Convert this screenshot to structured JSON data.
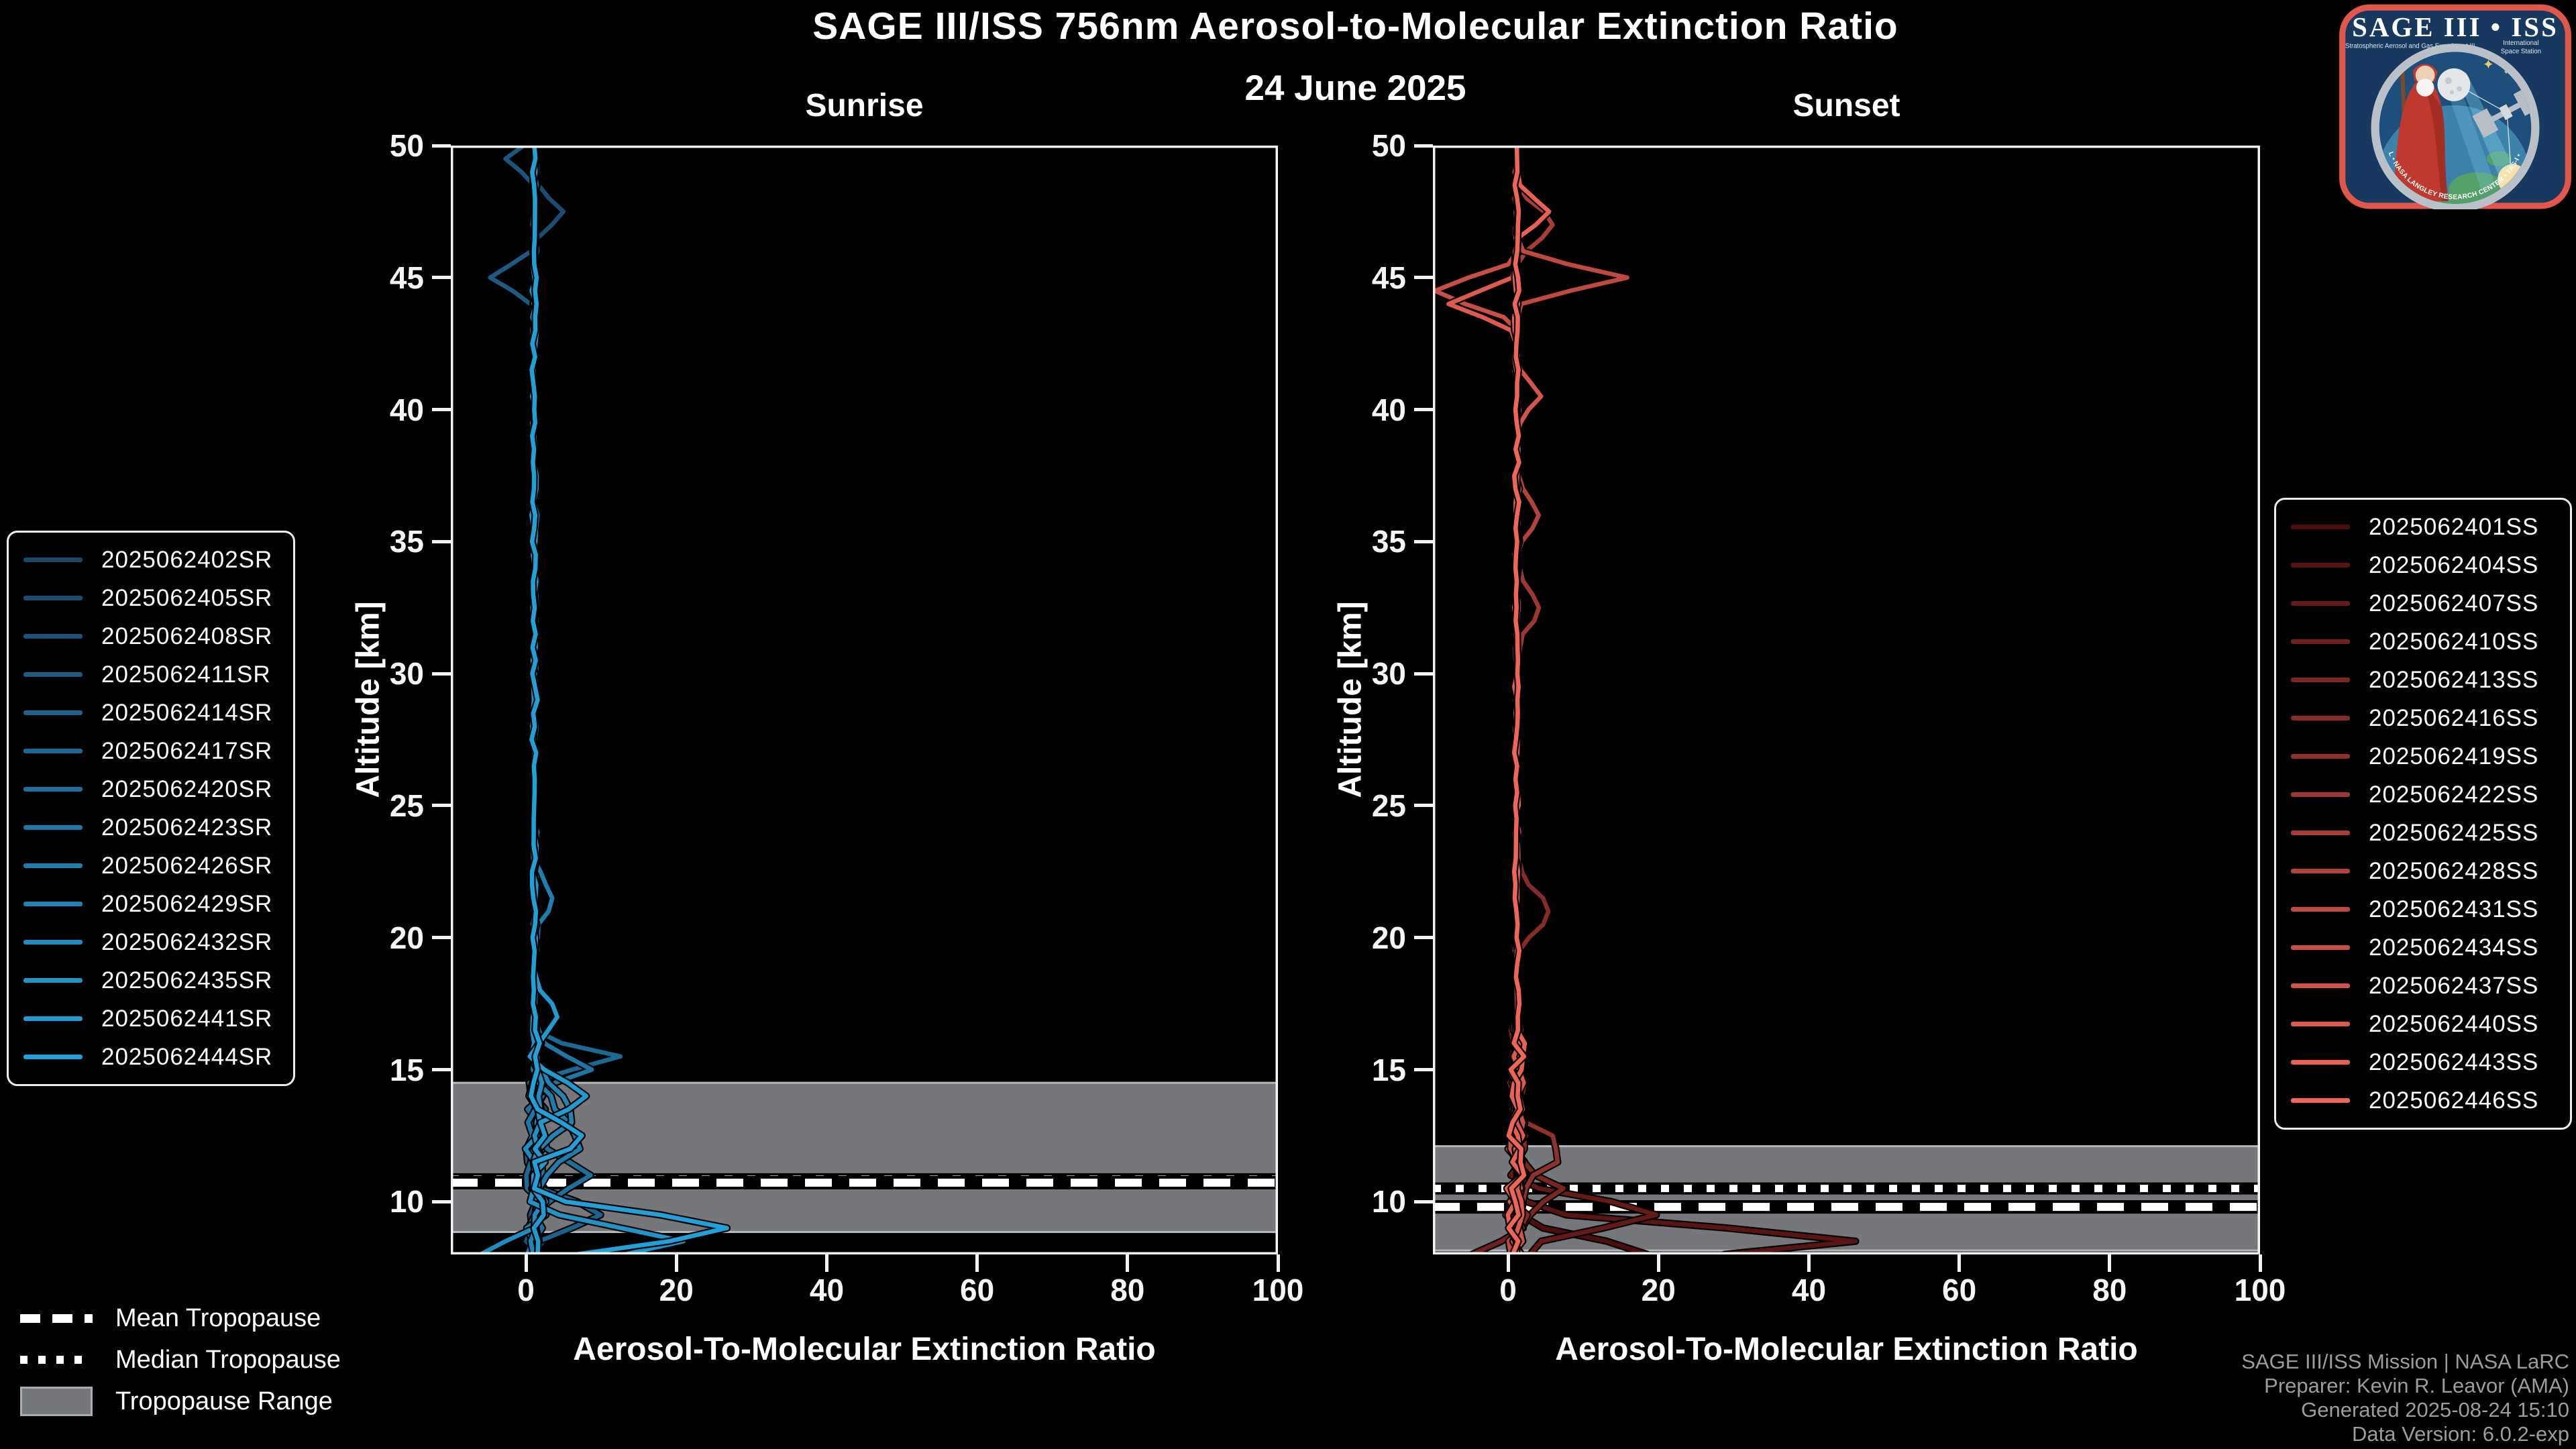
{
  "header": {
    "title": "SAGE III/ISS 756nm Aerosol-to-Molecular Extinction Ratio",
    "date": "24 June 2025"
  },
  "tropopause_legend": {
    "mean": "Mean Tropopause",
    "median": "Median Tropopause",
    "range": "Tropopause Range"
  },
  "attribution": {
    "line1": "SAGE III/ISS Mission | NASA LaRC",
    "line2": "Preparer: Kevin R. Leavor (AMA)",
    "line3": "Generated 2025-08-24 15:10",
    "line4": "Data Version: 6.0.2-exp"
  },
  "logo": {
    "title": "SAGE III • ISS",
    "subtitle_left": "Stratospheric Aerosol and Gas Experiment III",
    "subtitle_right1": "International",
    "subtitle_right2": "Space Station",
    "ring_text": "BALL • NASA LANGLEY RESEARCH CENTER • TAS-I • ESA"
  },
  "chart_data": {
    "type": "line",
    "title": "SAGE III/ISS 756nm Aerosol-to-Molecular Extinction Ratio",
    "subtitle": "24 June 2025",
    "xlabel": "Aerosol-To-Molecular Extinction Ratio",
    "ylabel": "Altitude [km]",
    "xlim": [
      -10,
      100
    ],
    "ylim": [
      8,
      50
    ],
    "x_ticks": [
      0,
      20,
      40,
      60,
      80,
      100
    ],
    "y_ticks": [
      10,
      15,
      20,
      25,
      30,
      35,
      40,
      45,
      50
    ],
    "grid": false,
    "altitude_step_km": 0.5,
    "baseline_ratio": 1.1,
    "noise": {
      "upper": 0.85,
      "mid": 2.3,
      "low": 3.0,
      "bottom": 3.4,
      "upper_above_km": 17,
      "mid_above_km": 14,
      "low_above_km": 10
    },
    "panels": [
      {
        "title": "Sunrise",
        "event": "SR",
        "legend_position": "outside-left",
        "tropopause": {
          "range_km": [
            8.85,
            14.5
          ],
          "mean_km": 10.72,
          "median_km": 10.85
        },
        "series": [
          {
            "label": "2025062402SR",
            "color": "#1b4668",
            "spikes": []
          },
          {
            "label": "2025062405SR",
            "color": "#1c4d71",
            "spikes": [
              [
                47.5,
                3.5,
                0.5
              ]
            ]
          },
          {
            "label": "2025062408SR",
            "color": "#1c547a",
            "spikes": [
              [
                49.5,
                -4,
                0.35
              ]
            ]
          },
          {
            "label": "2025062411SR",
            "color": "#1d5b82",
            "spikes": [
              [
                45.0,
                -6,
                0.45
              ]
            ]
          },
          {
            "label": "2025062414SR",
            "color": "#1d628b",
            "spikes": [
              [
                9.5,
                8,
                0.5
              ]
            ]
          },
          {
            "label": "2025062417SR",
            "color": "#1e6994",
            "spikes": [
              [
                15.5,
                11.5,
                0.35
              ]
            ]
          },
          {
            "label": "2025062420SR",
            "color": "#1e709c",
            "spikes": [
              [
                11.0,
                7,
                0.6
              ]
            ]
          },
          {
            "label": "2025062423SR",
            "color": "#1f77a5",
            "spikes": [
              [
                15.0,
                8,
                0.4
              ]
            ]
          },
          {
            "label": "2025062426SR",
            "color": "#1f7ead",
            "spikes": [
              [
                12.5,
                6,
                0.8
              ],
              [
                21.5,
                2.5,
                0.6
              ]
            ]
          },
          {
            "label": "2025062429SR",
            "color": "#2085b6",
            "spikes": [
              [
                13.5,
                5,
                0.7
              ]
            ]
          },
          {
            "label": "2025062432SR",
            "color": "#208cbf",
            "spikes": [
              [
                8.0,
                -7,
                0.4
              ]
            ]
          },
          {
            "label": "2025062435SR",
            "color": "#2193c7",
            "spikes": [
              [
                8.5,
                19,
                0.5
              ]
            ]
          },
          {
            "label": "2025062441SR",
            "color": "#219ad0",
            "spikes": [
              [
                14.0,
                7.5,
                0.5
              ],
              [
                17.0,
                3,
                0.6
              ]
            ]
          },
          {
            "label": "2025062444SR",
            "color": "#22a1d8",
            "spikes": [
              [
                9.0,
                26,
                0.55
              ],
              [
                12.5,
                6,
                0.5
              ]
            ]
          }
        ]
      },
      {
        "title": "Sunset",
        "event": "SS",
        "legend_position": "outside-right",
        "tropopause": {
          "range_km": [
            8.15,
            12.1
          ],
          "mean_km": 9.8,
          "median_km": 10.5
        },
        "series": [
          {
            "label": "2025062401SS",
            "color": "#4f0e0e",
            "spikes": [
              [
                8.0,
                17,
                0.6
              ]
            ]
          },
          {
            "label": "2025062404SS",
            "color": "#5a1413",
            "spikes": [
              [
                8.5,
                45,
                0.5
              ]
            ]
          },
          {
            "label": "2025062407SS",
            "color": "#651a18",
            "spikes": [
              [
                9.5,
                19,
                0.5
              ]
            ]
          },
          {
            "label": "2025062410SS",
            "color": "#70201d",
            "spikes": [
              [
                8.0,
                -6,
                0.4
              ]
            ]
          },
          {
            "label": "2025062413SS",
            "color": "#7b2622",
            "spikes": [
              [
                10.5,
                6,
                0.5
              ]
            ]
          },
          {
            "label": "2025062416SS",
            "color": "#862b27",
            "spikes": [
              [
                21.0,
                4.5,
                0.7
              ]
            ]
          },
          {
            "label": "2025062419SS",
            "color": "#91312c",
            "spikes": [
              [
                12.0,
                5,
                0.7
              ]
            ]
          },
          {
            "label": "2025062422SS",
            "color": "#9c3731",
            "spikes": [
              [
                32.5,
                3,
                0.7
              ]
            ]
          },
          {
            "label": "2025062425SS",
            "color": "#a73d36",
            "spikes": [
              [
                47.0,
                5,
                0.6
              ]
            ]
          },
          {
            "label": "2025062428SS",
            "color": "#b2433b",
            "spikes": [
              [
                36.0,
                3,
                0.6
              ]
            ]
          },
          {
            "label": "2025062431SS",
            "color": "#bd4940",
            "spikes": [
              [
                45.0,
                15,
                0.4
              ]
            ]
          },
          {
            "label": "2025062434SS",
            "color": "#c84f45",
            "spikes": [
              [
                44.5,
                -11,
                0.5
              ]
            ]
          },
          {
            "label": "2025062437SS",
            "color": "#d3544a",
            "spikes": [
              [
                40.5,
                3,
                0.5
              ]
            ]
          },
          {
            "label": "2025062440SS",
            "color": "#de5a4f",
            "spikes": [
              [
                44.0,
                -9,
                0.45
              ]
            ]
          },
          {
            "label": "2025062443SS",
            "color": "#e96054",
            "spikes": [
              [
                47.5,
                4,
                0.5
              ]
            ]
          },
          {
            "label": "2025062446SS",
            "color": "#ef6557",
            "spikes": []
          }
        ]
      }
    ]
  }
}
